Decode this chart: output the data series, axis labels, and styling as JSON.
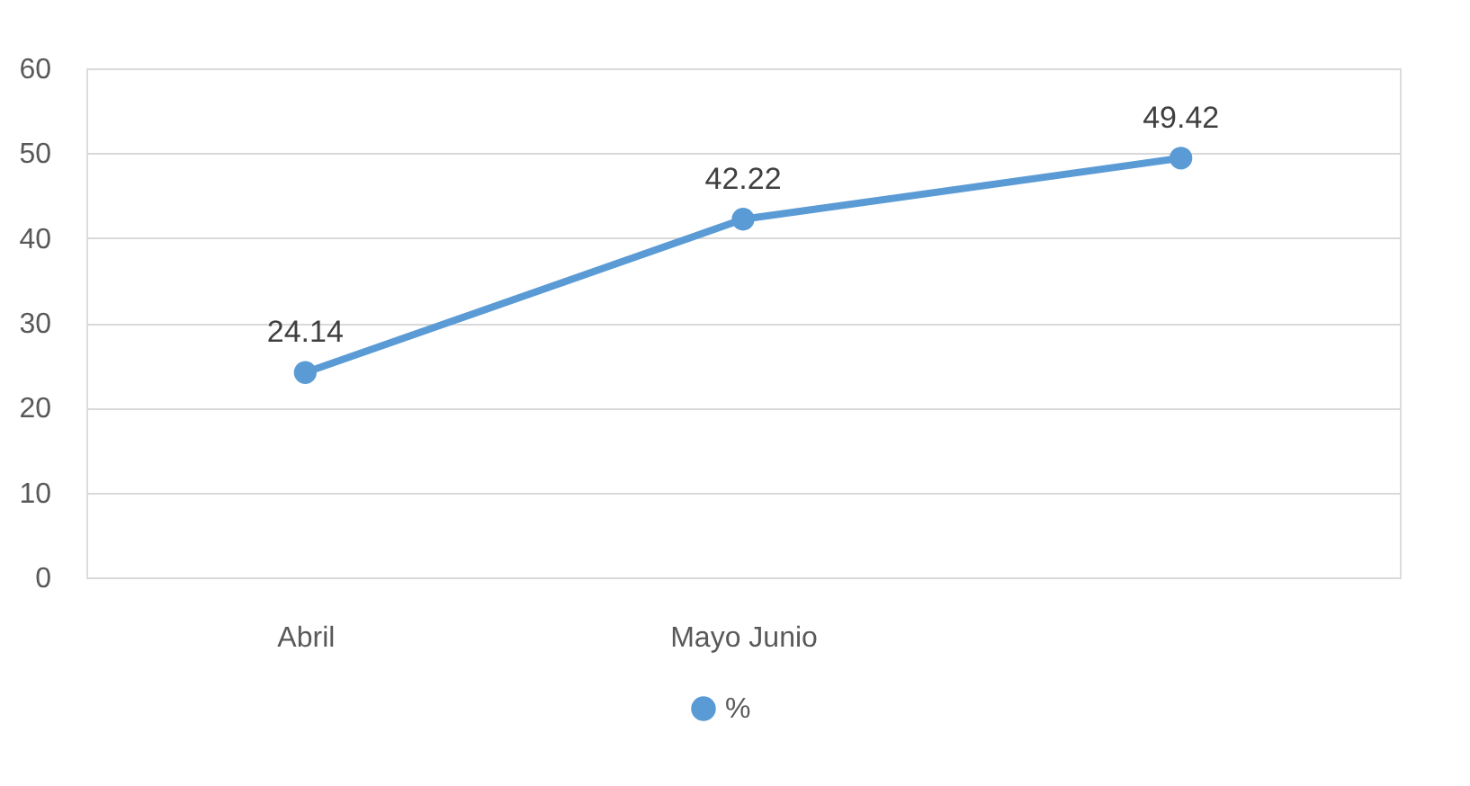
{
  "chart_data": {
    "type": "line",
    "categories": [
      "Abril",
      "Mayo Junio",
      null
    ],
    "series": [
      {
        "name": "%",
        "color": "#5b9bd5",
        "values": [
          24.14,
          42.22,
          49.42
        ]
      }
    ],
    "ylim": [
      0,
      60
    ],
    "yticks": [
      0,
      10,
      20,
      30,
      40,
      50,
      60
    ],
    "grid": "y",
    "legend": "bottom",
    "marker": "circle",
    "line_style": "solid",
    "data_labels": true
  }
}
